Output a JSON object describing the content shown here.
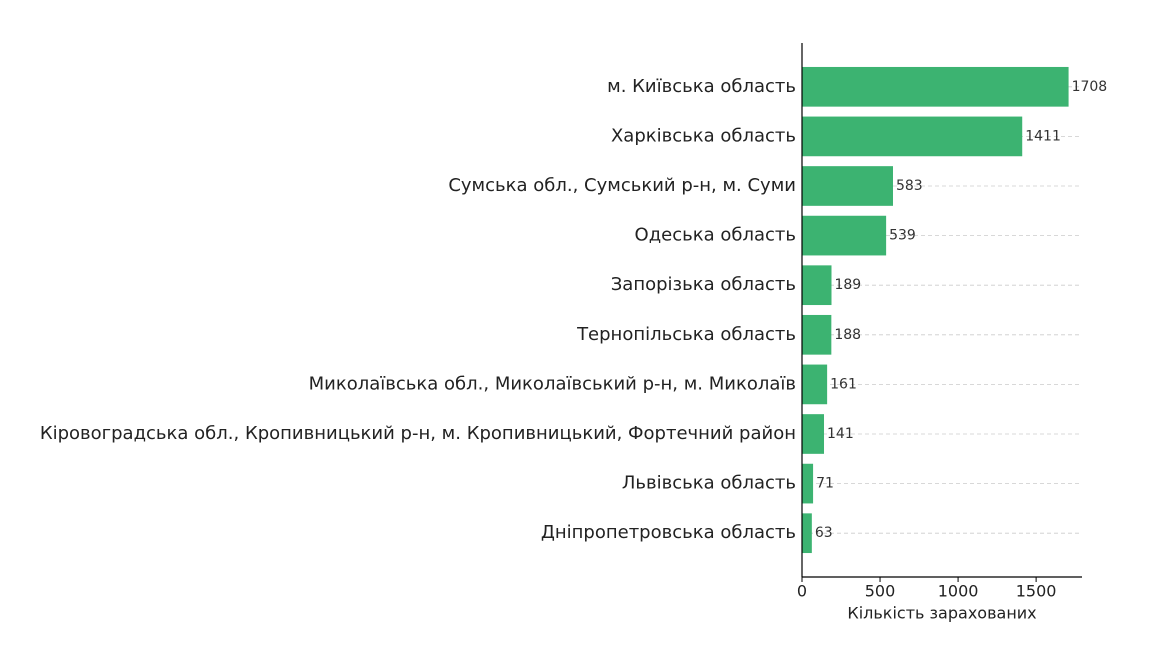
{
  "chart_data": {
    "type": "barh",
    "xlabel": "Кількість зарахованих",
    "categories": [
      "м. Київська область",
      "Харківська область",
      "Сумська обл., Сумський р-н, м. Суми",
      "Одеська область",
      "Запорізька область",
      "Тернопільська область",
      "Миколаївська обл., Миколаївський р-н, м. Миколаїв",
      "Кіровоградська обл., Кропивницький р-н, м. Кропивницький, Фортечний район",
      "Львівська область",
      "Дніпропетровська область"
    ],
    "values": [
      1708,
      1411,
      583,
      539,
      189,
      188,
      161,
      141,
      71,
      63
    ],
    "color": "#3cb371",
    "xlim": [
      0,
      1794
    ],
    "xticks": [
      0,
      500,
      1000,
      1500
    ],
    "grid": true
  }
}
